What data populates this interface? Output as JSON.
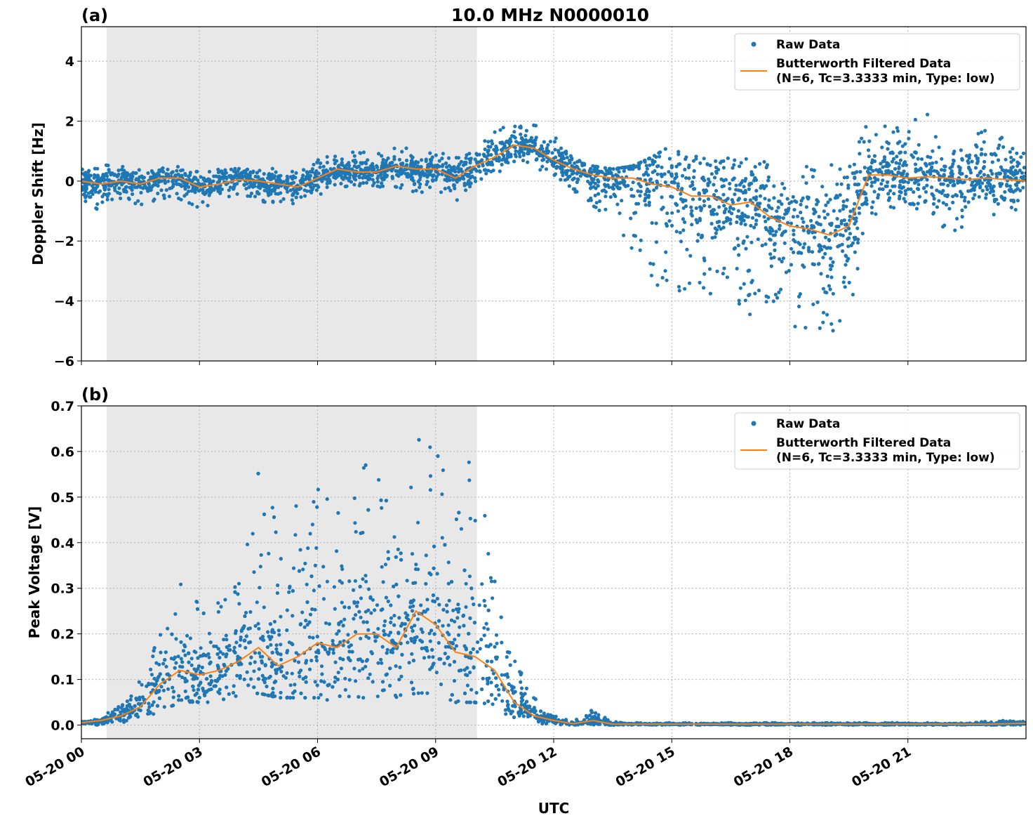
{
  "title": "10.0 MHz N0000010",
  "colors": {
    "raw": "#1f77b4",
    "filtered": "#ff7f0e",
    "shade": "#e8e8e8"
  },
  "chart_data": [
    {
      "type": "scatter+line",
      "panel_label": "(a)",
      "ylabel": "Doppler Shift [Hz]",
      "xlim_hours_utc": [
        0,
        24
      ],
      "ylim": [
        -6,
        5.15
      ],
      "yticks": [
        -6,
        -4,
        -2,
        0,
        2,
        4
      ],
      "ytick_labels": [
        "−6",
        "−4",
        "−2",
        "0",
        "2",
        "4"
      ],
      "grid": true,
      "shaded_interval_hours": [
        0.64,
        10.05
      ],
      "legend": {
        "placement": "top-right",
        "entries": [
          "Raw Data",
          "Butterworth Filtered Data",
          "(N=6, Tc=3.3333 min, Type: low)"
        ]
      },
      "x_hours": [
        0,
        0.5,
        1,
        1.5,
        2,
        2.5,
        3,
        3.5,
        4,
        4.5,
        5,
        5.5,
        6,
        6.5,
        7,
        7.5,
        8,
        8.5,
        9,
        9.5,
        10,
        10.5,
        11,
        11.5,
        12,
        12.5,
        13,
        13.5,
        14,
        14.5,
        15,
        15.5,
        16,
        16.5,
        17,
        17.5,
        18,
        18.5,
        19,
        19.5,
        20,
        20.5,
        21,
        21.5,
        22,
        22.5,
        23,
        23.5,
        24
      ],
      "filtered": [
        0,
        -0.1,
        0,
        -0.1,
        0.1,
        0.1,
        -0.2,
        -0.1,
        0.05,
        0,
        -0.1,
        -0.2,
        0.1,
        0.4,
        0.3,
        0.3,
        0.5,
        0.4,
        0.4,
        0.1,
        0.5,
        0.8,
        1.2,
        1.1,
        0.7,
        0.4,
        0.2,
        0.1,
        0.1,
        -0.1,
        -0.2,
        -0.5,
        -0.5,
        -0.8,
        -0.7,
        -1.2,
        -1.5,
        -1.6,
        -1.8,
        -1.5,
        0.2,
        0.2,
        0.1,
        0.15,
        0.1,
        0.05,
        0.1,
        0.05,
        0
      ],
      "raw_lower": [
        -1.2,
        -0.9,
        -0.7,
        -0.8,
        -0.6,
        -0.6,
        -0.9,
        -0.7,
        -0.6,
        -0.8,
        -0.7,
        -0.8,
        -0.5,
        -0.2,
        -0.3,
        -0.3,
        -0.2,
        -0.4,
        -0.3,
        -0.8,
        -0.2,
        0.2,
        0.5,
        0.5,
        0.1,
        -0.3,
        -1.2,
        -1.5,
        -2.5,
        -3.5,
        -4,
        -3.5,
        -3.8,
        -4,
        -4.5,
        -4.2,
        -4.8,
        -5,
        -5.3,
        -4.5,
        -1.2,
        -1,
        -1.1,
        -1,
        -1.8,
        -1.5,
        -1.2,
        -1.2,
        -1.1
      ],
      "raw_upper": [
        0.7,
        0.6,
        0.5,
        0.4,
        0.5,
        0.5,
        0.3,
        0.4,
        0.5,
        0.5,
        0.4,
        0.3,
        0.7,
        1,
        1,
        1,
        1.2,
        1,
        1,
        0.8,
        1.2,
        1.7,
        1.9,
        1.9,
        1.5,
        1,
        0.5,
        0.4,
        0.5,
        0.8,
        1.2,
        1,
        1,
        1.2,
        0.8,
        0.6,
        0.5,
        0.6,
        0.8,
        0.6,
        2,
        1.8,
        1.9,
        2.3,
        1.6,
        1.5,
        1.8,
        1.4,
        1.2
      ]
    },
    {
      "type": "scatter+line",
      "panel_label": "(b)",
      "ylabel": "Peak Voltage [V]",
      "xlabel": "UTC",
      "xlim_hours_utc": [
        0,
        24
      ],
      "xticks_hours": [
        0,
        3,
        6,
        9,
        12,
        15,
        18,
        21
      ],
      "xtick_labels": [
        "05-20 00",
        "05-20 03",
        "05-20 06",
        "05-20 09",
        "05-20 12",
        "05-20 15",
        "05-20 18",
        "05-20 21"
      ],
      "ylim": [
        -0.03,
        0.7
      ],
      "yticks": [
        0.0,
        0.1,
        0.2,
        0.3,
        0.4,
        0.5,
        0.6,
        0.7
      ],
      "ytick_labels": [
        "0.0",
        "0.1",
        "0.2",
        "0.3",
        "0.4",
        "0.5",
        "0.6",
        "0.7"
      ],
      "grid": true,
      "shaded_interval_hours": [
        0.64,
        10.05
      ],
      "legend": {
        "placement": "top-right",
        "entries": [
          "Raw Data",
          "Butterworth Filtered Data",
          "(N=6, Tc=3.3333 min, Type: low)"
        ]
      },
      "x_hours": [
        0,
        0.5,
        1,
        1.5,
        2,
        2.5,
        3,
        3.5,
        4,
        4.5,
        5,
        5.5,
        6,
        6.5,
        7,
        7.5,
        8,
        8.5,
        9,
        9.5,
        10,
        10.5,
        11,
        11.5,
        12,
        12.5,
        13,
        13.5,
        14,
        14.5,
        15,
        15.5,
        16,
        16.5,
        17,
        17.5,
        18,
        18.5,
        19,
        19.5,
        20,
        20.5,
        21,
        21.5,
        22,
        22.5,
        23,
        23.5,
        24
      ],
      "filtered": [
        0.005,
        0.01,
        0.02,
        0.04,
        0.09,
        0.12,
        0.11,
        0.12,
        0.14,
        0.17,
        0.13,
        0.15,
        0.18,
        0.17,
        0.2,
        0.2,
        0.17,
        0.25,
        0.22,
        0.16,
        0.15,
        0.12,
        0.05,
        0.02,
        0.01,
        0.003,
        0.01,
        0.002,
        0.002,
        0.002,
        0.002,
        0.002,
        0.002,
        0.002,
        0.002,
        0.002,
        0.002,
        0.002,
        0.002,
        0.002,
        0.002,
        0.002,
        0.002,
        0.002,
        0.002,
        0.002,
        0.002,
        0.003,
        0.004
      ],
      "raw_lower": [
        0,
        0,
        0.005,
        0.01,
        0.03,
        0.05,
        0.05,
        0.05,
        0.06,
        0.07,
        0.06,
        0.06,
        0.06,
        0.05,
        0.06,
        0.06,
        0.06,
        0.07,
        0.07,
        0.05,
        0.05,
        0.03,
        0.01,
        0.005,
        0,
        0,
        0,
        0,
        0,
        0,
        0,
        0,
        0,
        0,
        0,
        0,
        0,
        0,
        0,
        0,
        0,
        0,
        0,
        0,
        0,
        0,
        0,
        0,
        0
      ],
      "raw_upper": [
        0.01,
        0.015,
        0.05,
        0.1,
        0.22,
        0.35,
        0.26,
        0.27,
        0.33,
        0.56,
        0.45,
        0.5,
        0.52,
        0.5,
        0.57,
        0.6,
        0.42,
        0.66,
        0.63,
        0.45,
        0.66,
        0.33,
        0.15,
        0.06,
        0.02,
        0.01,
        0.04,
        0.008,
        0.005,
        0.005,
        0.005,
        0.005,
        0.005,
        0.005,
        0.005,
        0.005,
        0.005,
        0.005,
        0.005,
        0.005,
        0.005,
        0.005,
        0.005,
        0.005,
        0.005,
        0.005,
        0.008,
        0.01,
        0.012
      ]
    }
  ]
}
